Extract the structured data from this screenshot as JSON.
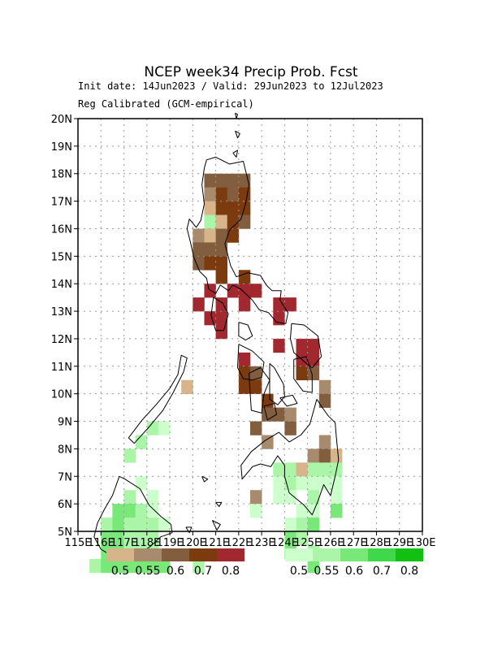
{
  "title": "NCEP week34 Precip Prob. Fcst",
  "subtitle1": "Init date: 14Jun2023 / Valid: 29Jun2023 to 12Jul2023",
  "subtitle2": "Reg Calibrated (GCM-empirical)",
  "axes": {
    "lon_range": [
      115,
      130
    ],
    "lat_range": [
      5,
      20
    ],
    "lon_ticks": [
      "115E",
      "116E",
      "117E",
      "118E",
      "119E",
      "120E",
      "121E",
      "122E",
      "123E",
      "124E",
      "125E",
      "126E",
      "127E",
      "128E",
      "129E",
      "130E"
    ],
    "lat_ticks": [
      "5N",
      "6N",
      "7N",
      "8N",
      "9N",
      "10N",
      "11N",
      "12N",
      "13N",
      "14N",
      "15N",
      "16N",
      "17N",
      "18N",
      "19N",
      "20N"
    ],
    "grid": "dotted"
  },
  "legend": {
    "below": {
      "colors": [
        "#d8b48a",
        "#a88a6c",
        "#825d3e",
        "#7c3b0e",
        "#a0282e"
      ],
      "labels": [
        "0.5",
        "0.55",
        "0.6",
        "0.7",
        "0.8"
      ]
    },
    "above": {
      "colors": [
        "#ccffcc",
        "#aaf5a8",
        "#78e878",
        "#3ed84a",
        "#12c012"
      ],
      "labels": [
        "0.5",
        "0.55",
        "0.6",
        "0.7",
        "0.8"
      ]
    }
  },
  "colors": {
    "B1": "#d8b48a",
    "B2": "#a88a6c",
    "B3": "#825d3e",
    "B4": "#7c3b0e",
    "B5": "#a0282e",
    "A1": "#ccffcc",
    "A2": "#aaf5a8",
    "A3": "#78e878",
    "A4": "#3ed84a",
    "A5": "#12c012"
  },
  "grid_cells": [
    [
      120.5,
      17.5,
      "B3"
    ],
    [
      121.0,
      17.5,
      "B3"
    ],
    [
      121.5,
      17.5,
      "B3"
    ],
    [
      122.0,
      17.5,
      "B3"
    ],
    [
      120.5,
      17.0,
      "B2"
    ],
    [
      121.0,
      17.0,
      "B4"
    ],
    [
      121.5,
      17.0,
      "B3"
    ],
    [
      122.0,
      17.0,
      "B4"
    ],
    [
      120.5,
      16.5,
      "B1"
    ],
    [
      121.0,
      16.5,
      "B4"
    ],
    [
      121.5,
      16.5,
      "B4"
    ],
    [
      122.0,
      16.5,
      "B4"
    ],
    [
      120.5,
      16.0,
      "A2"
    ],
    [
      121.0,
      16.0,
      "B1"
    ],
    [
      121.5,
      16.0,
      "B4"
    ],
    [
      122.0,
      16.0,
      "B3"
    ],
    [
      120.0,
      15.5,
      "B2"
    ],
    [
      120.5,
      15.5,
      "B1"
    ],
    [
      121.0,
      15.5,
      "B3"
    ],
    [
      121.5,
      15.5,
      "B4"
    ],
    [
      120.0,
      15.0,
      "B3"
    ],
    [
      120.5,
      15.0,
      "B3"
    ],
    [
      121.0,
      15.0,
      "B3"
    ],
    [
      120.0,
      14.5,
      "B3"
    ],
    [
      120.5,
      14.5,
      "B4"
    ],
    [
      121.0,
      14.5,
      "B4"
    ],
    [
      121.0,
      14.0,
      "B4"
    ],
    [
      122.0,
      14.0,
      "B4"
    ],
    [
      120.5,
      13.5,
      "B5"
    ],
    [
      121.5,
      13.5,
      "B5"
    ],
    [
      122.0,
      13.5,
      "B5"
    ],
    [
      122.5,
      13.5,
      "B5"
    ],
    [
      120.0,
      13.0,
      "B5"
    ],
    [
      121.0,
      13.0,
      "B5"
    ],
    [
      122.0,
      13.0,
      "B5"
    ],
    [
      123.5,
      13.0,
      "B5"
    ],
    [
      124.0,
      13.0,
      "B5"
    ],
    [
      120.5,
      12.5,
      "B5"
    ],
    [
      121.0,
      12.5,
      "B5"
    ],
    [
      123.5,
      12.5,
      "B5"
    ],
    [
      121.0,
      12.0,
      "B5"
    ],
    [
      123.5,
      11.5,
      "B5"
    ],
    [
      124.5,
      11.5,
      "B5"
    ],
    [
      125.0,
      11.5,
      "B5"
    ],
    [
      124.5,
      11.0,
      "B5"
    ],
    [
      125.0,
      11.0,
      "B5"
    ],
    [
      122.0,
      11.0,
      "B5"
    ],
    [
      122.0,
      10.5,
      "B4"
    ],
    [
      122.5,
      10.5,
      "B3"
    ],
    [
      124.5,
      10.5,
      "B4"
    ],
    [
      125.0,
      10.5,
      "B3"
    ],
    [
      122.0,
      10.0,
      "B4"
    ],
    [
      122.5,
      10.0,
      "B4"
    ],
    [
      125.5,
      10.0,
      "B2"
    ],
    [
      123.0,
      9.5,
      "B4"
    ],
    [
      125.5,
      9.5,
      "B3"
    ],
    [
      123.0,
      9.0,
      "B3"
    ],
    [
      123.5,
      9.0,
      "B3"
    ],
    [
      124.0,
      9.0,
      "B2"
    ],
    [
      122.5,
      8.5,
      "B3"
    ],
    [
      124.0,
      8.5,
      "B3"
    ],
    [
      123.0,
      8.0,
      "B2"
    ],
    [
      125.5,
      8.0,
      "B2"
    ],
    [
      125.0,
      7.5,
      "B2"
    ],
    [
      125.5,
      7.5,
      "B3"
    ],
    [
      126.0,
      7.5,
      "B1"
    ],
    [
      123.5,
      7.0,
      "A2"
    ],
    [
      124.0,
      7.0,
      "A2"
    ],
    [
      124.5,
      7.0,
      "B1"
    ],
    [
      125.0,
      7.0,
      "A2"
    ],
    [
      125.5,
      7.0,
      "A2"
    ],
    [
      126.0,
      7.0,
      "A2"
    ],
    [
      123.5,
      6.5,
      "A1"
    ],
    [
      124.0,
      6.5,
      "A2"
    ],
    [
      124.5,
      6.5,
      "A1"
    ],
    [
      125.0,
      6.5,
      "A1"
    ],
    [
      125.5,
      6.5,
      "A1"
    ],
    [
      126.0,
      6.5,
      "A1"
    ],
    [
      122.5,
      6.0,
      "B2"
    ],
    [
      123.5,
      6.0,
      "A1"
    ],
    [
      124.0,
      6.0,
      "A1"
    ],
    [
      125.0,
      6.0,
      "A2"
    ],
    [
      126.0,
      6.0,
      "A1"
    ],
    [
      122.5,
      5.5,
      "A1"
    ],
    [
      124.5,
      5.5,
      "A1"
    ],
    [
      125.0,
      5.5,
      "A1"
    ],
    [
      126.0,
      5.5,
      "A3"
    ],
    [
      124.5,
      5.0,
      "A2"
    ],
    [
      125.0,
      5.0,
      "A3"
    ],
    [
      124.0,
      5.0,
      "A1"
    ],
    [
      124.0,
      4.5,
      "A3"
    ],
    [
      124.5,
      4.5,
      "A2"
    ],
    [
      124.0,
      4.0,
      "A3"
    ],
    [
      125.0,
      4.0,
      "A2"
    ],
    [
      125.0,
      3.5,
      "A3"
    ],
    [
      119.5,
      10.0,
      "B1"
    ],
    [
      118.0,
      8.5,
      "A2"
    ],
    [
      118.5,
      8.5,
      "A1"
    ],
    [
      117.5,
      8.0,
      "A2"
    ],
    [
      117.0,
      7.5,
      "A2"
    ],
    [
      117.5,
      6.5,
      "A1"
    ],
    [
      117.0,
      6.0,
      "A2"
    ],
    [
      118.0,
      6.0,
      "A1"
    ],
    [
      116.5,
      5.5,
      "A3"
    ],
    [
      117.0,
      5.5,
      "A3"
    ],
    [
      117.5,
      5.5,
      "A2"
    ],
    [
      118.0,
      5.5,
      "A1"
    ],
    [
      116.0,
      5.0,
      "A2"
    ],
    [
      116.5,
      5.0,
      "A3"
    ],
    [
      117.0,
      5.0,
      "A2"
    ],
    [
      117.5,
      5.0,
      "A2"
    ],
    [
      118.0,
      5.0,
      "A2"
    ],
    [
      118.5,
      5.0,
      "A1"
    ],
    [
      116.0,
      4.5,
      "A3"
    ],
    [
      116.5,
      4.5,
      "A3"
    ],
    [
      117.0,
      4.5,
      "A2"
    ],
    [
      117.5,
      4.5,
      "A2"
    ],
    [
      118.0,
      4.5,
      "A2"
    ],
    [
      116.0,
      4.0,
      "A3"
    ],
    [
      116.5,
      4.0,
      "A3"
    ],
    [
      117.0,
      4.0,
      "A2"
    ],
    [
      117.5,
      4.0,
      "A2"
    ],
    [
      118.0,
      4.0,
      "A2"
    ],
    [
      115.5,
      3.5,
      "A2"
    ],
    [
      116.0,
      3.5,
      "A3"
    ],
    [
      116.5,
      3.5,
      "A3"
    ],
    [
      117.0,
      3.5,
      "A3"
    ],
    [
      117.5,
      3.5,
      "A3"
    ],
    [
      118.0,
      3.5,
      "A3"
    ],
    [
      118.5,
      3.5,
      "A3"
    ],
    [
      120.0,
      3.5,
      "A2"
    ]
  ],
  "coastlines": [
    [
      [
        121.0,
        18.6
      ],
      [
        120.6,
        18.5
      ],
      [
        120.5,
        18.2
      ],
      [
        120.4,
        17.6
      ],
      [
        120.5,
        16.9
      ],
      [
        120.35,
        16.3
      ],
      [
        120.15,
        16.05
      ],
      [
        119.85,
        16.35
      ],
      [
        119.75,
        16.0
      ],
      [
        119.9,
        15.5
      ],
      [
        120.05,
        14.95
      ],
      [
        120.3,
        14.45
      ],
      [
        120.6,
        14.2
      ],
      [
        120.7,
        13.8
      ],
      [
        121.0,
        13.65
      ],
      [
        121.2,
        13.95
      ],
      [
        121.55,
        13.75
      ],
      [
        121.75,
        13.95
      ],
      [
        122.1,
        13.8
      ],
      [
        122.6,
        13.4
      ],
      [
        122.9,
        13.05
      ],
      [
        123.3,
        12.95
      ],
      [
        123.65,
        12.6
      ],
      [
        124.05,
        12.55
      ],
      [
        124.15,
        12.95
      ],
      [
        123.8,
        13.4
      ],
      [
        123.85,
        13.75
      ],
      [
        123.45,
        13.75
      ],
      [
        123.2,
        13.95
      ],
      [
        122.95,
        14.3
      ],
      [
        122.4,
        14.4
      ],
      [
        121.9,
        14.25
      ],
      [
        121.65,
        14.65
      ],
      [
        121.4,
        15.45
      ],
      [
        121.6,
        15.95
      ],
      [
        122.1,
        16.35
      ],
      [
        122.3,
        16.9
      ],
      [
        122.45,
        17.6
      ],
      [
        122.2,
        18.45
      ],
      [
        121.6,
        18.35
      ],
      [
        121.0,
        18.6
      ]
    ],
    [
      [
        120.9,
        13.5
      ],
      [
        121.3,
        13.3
      ],
      [
        121.55,
        12.9
      ],
      [
        121.35,
        12.3
      ],
      [
        121.0,
        12.3
      ],
      [
        120.8,
        12.85
      ],
      [
        120.9,
        13.5
      ]
    ],
    [
      [
        122.0,
        12.6
      ],
      [
        122.4,
        12.5
      ],
      [
        122.6,
        12.1
      ],
      [
        122.3,
        11.95
      ],
      [
        122.0,
        12.1
      ],
      [
        122.0,
        12.6
      ]
    ],
    [
      [
        122.0,
        11.8
      ],
      [
        122.6,
        11.55
      ],
      [
        123.1,
        11.15
      ],
      [
        123.0,
        10.6
      ],
      [
        122.6,
        10.5
      ],
      [
        122.2,
        10.55
      ],
      [
        121.95,
        10.95
      ],
      [
        122.0,
        11.8
      ]
    ],
    [
      [
        122.45,
        10.75
      ],
      [
        122.95,
        10.95
      ],
      [
        123.35,
        10.5
      ],
      [
        123.1,
        10.0
      ],
      [
        123.0,
        9.3
      ],
      [
        122.55,
        9.4
      ],
      [
        122.5,
        10.0
      ],
      [
        122.45,
        10.75
      ]
    ],
    [
      [
        123.35,
        11.1
      ],
      [
        123.55,
        10.95
      ],
      [
        123.95,
        10.35
      ],
      [
        124.0,
        9.9
      ],
      [
        123.7,
        9.6
      ],
      [
        123.35,
        9.8
      ],
      [
        123.35,
        10.5
      ],
      [
        123.35,
        11.1
      ]
    ],
    [
      [
        124.3,
        12.55
      ],
      [
        124.85,
        12.5
      ],
      [
        125.45,
        12.1
      ],
      [
        125.6,
        11.35
      ],
      [
        125.2,
        10.95
      ],
      [
        124.95,
        11.1
      ],
      [
        124.4,
        11.5
      ],
      [
        124.25,
        12.0
      ],
      [
        124.3,
        12.55
      ]
    ],
    [
      [
        124.4,
        11.25
      ],
      [
        124.95,
        11.35
      ],
      [
        125.2,
        10.7
      ],
      [
        125.2,
        10.05
      ],
      [
        124.8,
        10.1
      ],
      [
        124.4,
        10.55
      ],
      [
        124.4,
        11.25
      ]
    ],
    [
      [
        123.1,
        9.55
      ],
      [
        123.55,
        9.65
      ],
      [
        123.65,
        9.25
      ],
      [
        123.25,
        9.05
      ],
      [
        123.1,
        9.55
      ]
    ],
    [
      [
        123.8,
        9.85
      ],
      [
        124.35,
        9.95
      ],
      [
        124.55,
        9.65
      ],
      [
        124.1,
        9.55
      ],
      [
        123.8,
        9.85
      ]
    ],
    [
      [
        125.4,
        9.8
      ],
      [
        125.6,
        9.55
      ],
      [
        125.9,
        9.2
      ],
      [
        126.2,
        8.95
      ],
      [
        126.25,
        8.45
      ],
      [
        126.35,
        7.6
      ],
      [
        126.2,
        7.0
      ],
      [
        126.0,
        6.3
      ],
      [
        125.7,
        6.7
      ],
      [
        125.45,
        6.1
      ],
      [
        125.2,
        5.6
      ],
      [
        124.85,
        5.95
      ],
      [
        124.2,
        6.4
      ],
      [
        124.0,
        7.0
      ],
      [
        124.0,
        7.4
      ],
      [
        123.7,
        7.75
      ],
      [
        123.4,
        7.35
      ],
      [
        122.95,
        7.45
      ],
      [
        122.6,
        7.35
      ],
      [
        122.15,
        6.9
      ],
      [
        122.1,
        7.4
      ],
      [
        122.55,
        7.9
      ],
      [
        123.15,
        8.3
      ],
      [
        123.75,
        8.6
      ],
      [
        124.2,
        8.25
      ],
      [
        124.7,
        8.5
      ],
      [
        125.1,
        8.9
      ],
      [
        125.4,
        9.8
      ]
    ],
    [
      [
        117.2,
        8.4
      ],
      [
        117.8,
        9.05
      ],
      [
        118.4,
        9.6
      ],
      [
        119.0,
        10.2
      ],
      [
        119.35,
        10.7
      ],
      [
        119.5,
        11.4
      ],
      [
        119.75,
        11.3
      ],
      [
        119.6,
        10.8
      ],
      [
        119.15,
        10.05
      ],
      [
        118.7,
        9.4
      ],
      [
        118.05,
        8.75
      ],
      [
        117.45,
        8.2
      ],
      [
        117.2,
        8.4
      ]
    ],
    [
      [
        116.8,
        7.0
      ],
      [
        117.05,
        6.9
      ],
      [
        117.7,
        6.55
      ],
      [
        118.1,
        5.95
      ],
      [
        118.6,
        5.55
      ],
      [
        119.05,
        5.25
      ],
      [
        119.1,
        4.95
      ],
      [
        118.6,
        4.8
      ],
      [
        118.15,
        4.45
      ],
      [
        117.7,
        4.2
      ],
      [
        117.2,
        4.1
      ],
      [
        116.5,
        4.1
      ],
      [
        116.0,
        4.35
      ],
      [
        115.7,
        4.8
      ],
      [
        115.85,
        5.3
      ],
      [
        116.15,
        5.8
      ],
      [
        116.5,
        6.3
      ],
      [
        116.8,
        7.0
      ]
    ],
    [
      [
        120.85,
        5.4
      ],
      [
        121.2,
        5.25
      ],
      [
        121.05,
        5.05
      ],
      [
        120.85,
        5.4
      ]
    ],
    [
      [
        119.7,
        5.15
      ],
      [
        119.95,
        5.15
      ],
      [
        119.85,
        4.95
      ],
      [
        119.7,
        5.15
      ]
    ],
    [
      [
        120.4,
        7.0
      ],
      [
        120.65,
        6.9
      ],
      [
        120.5,
        6.8
      ],
      [
        120.4,
        7.0
      ]
    ],
    [
      [
        121.0,
        6.05
      ],
      [
        121.25,
        6.05
      ],
      [
        121.15,
        5.9
      ],
      [
        121.0,
        6.05
      ]
    ],
    [
      [
        121.85,
        20.2
      ],
      [
        121.95,
        20.15
      ],
      [
        121.9,
        20.0
      ],
      [
        121.85,
        20.2
      ]
    ],
    [
      [
        121.85,
        19.55
      ],
      [
        122.05,
        19.45
      ],
      [
        121.95,
        19.3
      ],
      [
        121.85,
        19.55
      ]
    ],
    [
      [
        121.75,
        18.75
      ],
      [
        121.95,
        18.85
      ],
      [
        121.9,
        18.6
      ],
      [
        121.75,
        18.75
      ]
    ]
  ]
}
